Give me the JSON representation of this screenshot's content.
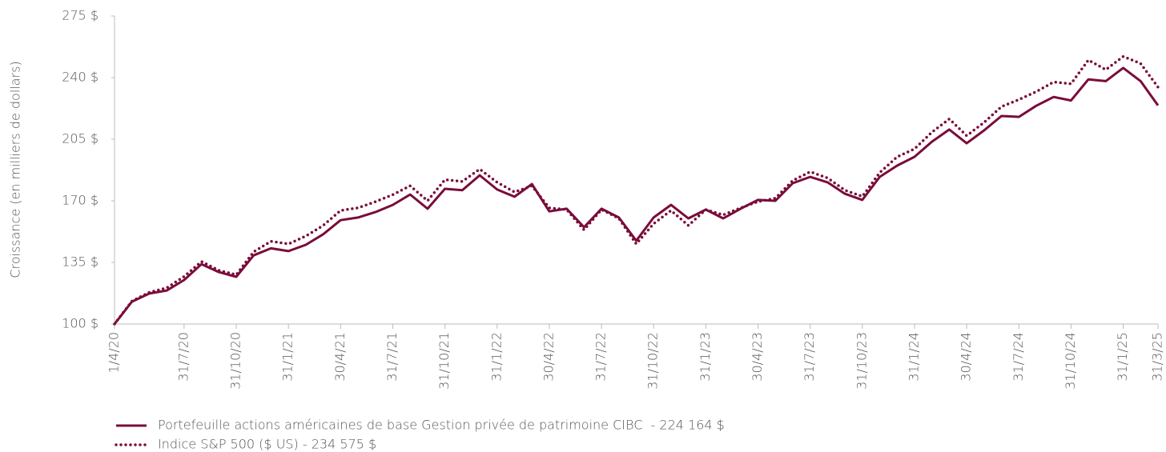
{
  "chart_data": {
    "type": "line",
    "y_label": "Croissance (en milliers de dollars)",
    "categories": [
      "1/4/20",
      null,
      null,
      null,
      "31/7/20",
      null,
      null,
      "31/10/20",
      null,
      null,
      "31/1/21",
      null,
      null,
      "30/4/21",
      null,
      null,
      "31/7/21",
      null,
      null,
      "31/10/21",
      null,
      null,
      "31/1/22",
      null,
      null,
      "30/4/22",
      null,
      null,
      "31/7/22",
      null,
      null,
      "31/10/22",
      null,
      null,
      "31/1/23",
      null,
      null,
      "30/4/23",
      null,
      null,
      "31/7/23",
      null,
      null,
      "31/10/23",
      null,
      null,
      "31/1/24",
      null,
      null,
      "30/4/24",
      null,
      null,
      "31/7/24",
      null,
      null,
      "31/10/24",
      null,
      null,
      "31/1/25",
      null,
      "31/3/25"
    ],
    "series": [
      {
        "name": "Portefeuille actions américaines de base Gestion privée de patrimoine CIBC  - 224 164 $",
        "color": "#7a0c3b",
        "style": "solid",
        "values": [
          100,
          112.7,
          117.3,
          119,
          125,
          134,
          129.5,
          126.8,
          139,
          143,
          141.4,
          145,
          151,
          159,
          160.5,
          163.6,
          167.7,
          173.6,
          165.5,
          176.8,
          176,
          184.5,
          176.4,
          172.3,
          179.5,
          164,
          165.5,
          155,
          165.5,
          160.5,
          147.3,
          160.5,
          167.7,
          160,
          165,
          160,
          165.5,
          170.5,
          170,
          180,
          183.6,
          180.5,
          174,
          170.5,
          183.6,
          190,
          195,
          203.6,
          210.5,
          202.7,
          210,
          218.2,
          217.7,
          224,
          229,
          227,
          239,
          238,
          245.5,
          238,
          224.164
        ]
      },
      {
        "name": "Indice S&P 500 ($ US) - 234 575 $",
        "color": "#7a0c3b",
        "style": "dotted",
        "values": [
          100,
          113,
          118,
          120.5,
          127,
          135.5,
          130.5,
          128,
          141,
          147,
          145.5,
          150,
          156,
          164.5,
          166,
          169.5,
          173.5,
          178.5,
          170,
          182,
          181,
          188,
          180.5,
          175,
          178.5,
          166,
          165,
          153.5,
          165,
          160,
          145.5,
          157,
          164.5,
          156,
          165,
          162,
          166,
          169.5,
          171.5,
          181.5,
          186.5,
          183,
          176,
          172.5,
          186,
          195,
          199.5,
          209,
          216.5,
          207,
          214.5,
          223.5,
          227.5,
          232,
          237.5,
          236.5,
          250,
          244.5,
          252,
          248,
          234.575
        ]
      }
    ],
    "ylim": [
      100,
      275
    ],
    "yticks": [
      {
        "value": 100,
        "label": "100 $"
      },
      {
        "value": 135,
        "label": "135 $"
      },
      {
        "value": 170,
        "label": "170 $"
      },
      {
        "value": 205,
        "label": "205 $"
      },
      {
        "value": 240,
        "label": "240 $"
      },
      {
        "value": 275,
        "label": "275 $"
      }
    ],
    "grid": false
  }
}
